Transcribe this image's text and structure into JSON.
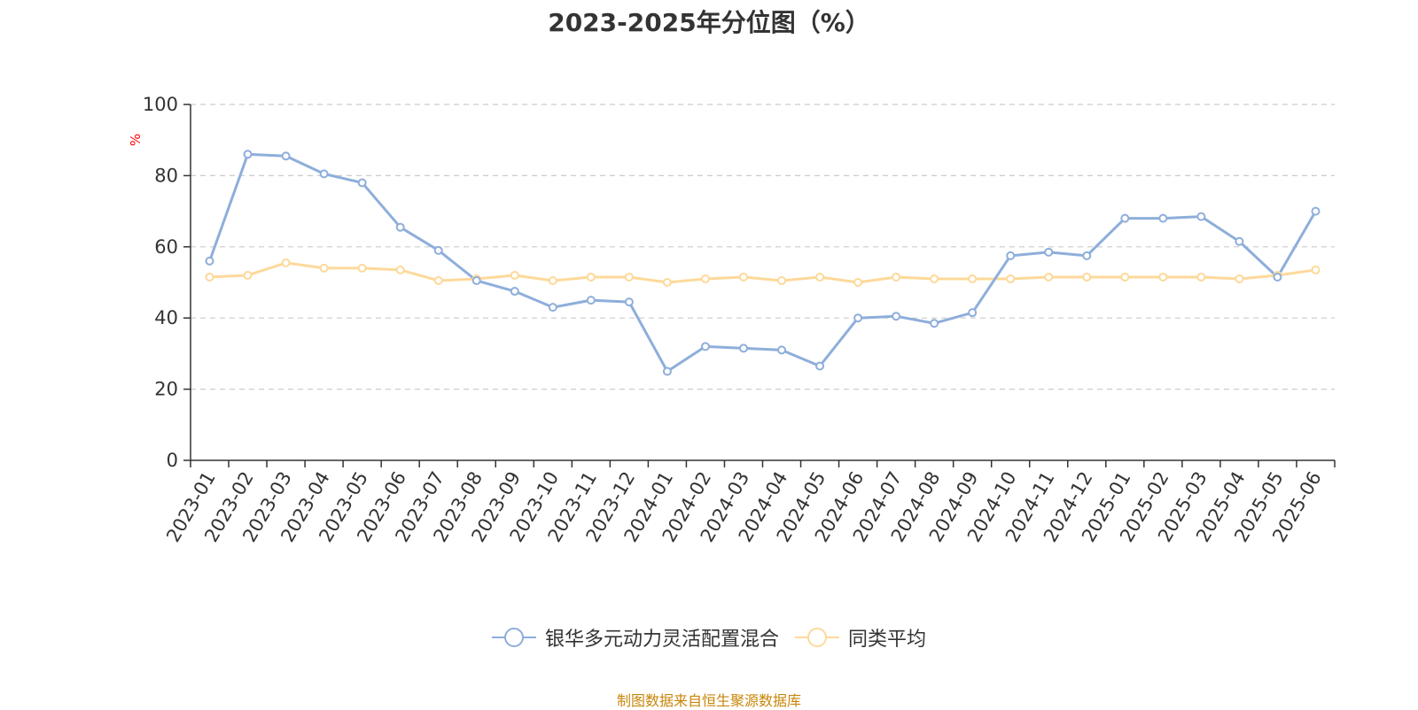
{
  "source_text": "制图数据来自恒生聚源数据库",
  "colors": {
    "series1": "#8eaedb",
    "series2": "#fdd99a",
    "grid": "#cccccc",
    "axis": "#333333",
    "unit": "#ff0000",
    "source": "#c8860a"
  },
  "chart_data": {
    "type": "line",
    "title": "2023-2025年分位图（%）",
    "ylabel": "%",
    "xlabel": "",
    "ylim": [
      0,
      100
    ],
    "yticks": [
      0,
      20,
      40,
      60,
      80,
      100
    ],
    "grid": true,
    "legend_position": "bottom",
    "categories": [
      "2023-01",
      "2023-02",
      "2023-03",
      "2023-04",
      "2023-05",
      "2023-06",
      "2023-07",
      "2023-08",
      "2023-09",
      "2023-10",
      "2023-11",
      "2023-12",
      "2024-01",
      "2024-02",
      "2024-03",
      "2024-04",
      "2024-05",
      "2024-06",
      "2024-07",
      "2024-08",
      "2024-09",
      "2024-10",
      "2024-11",
      "2024-12",
      "2025-01",
      "2025-02",
      "2025-03",
      "2025-04",
      "2025-05",
      "2025-06"
    ],
    "series": [
      {
        "name": "银华多元动力灵活配置混合",
        "values": [
          56,
          86,
          85.5,
          80.5,
          78,
          65.5,
          59,
          50.5,
          47.5,
          43,
          45,
          44.5,
          25,
          32,
          31.5,
          31,
          26.5,
          40,
          40.5,
          38.5,
          41.5,
          57.5,
          58.5,
          57.5,
          68,
          68,
          68.5,
          61.5,
          51.5,
          70
        ]
      },
      {
        "name": "同类平均",
        "values": [
          51.5,
          52,
          55.5,
          54,
          54,
          53.5,
          50.5,
          51,
          52,
          50.5,
          51.5,
          51.5,
          50,
          51,
          51.5,
          50.5,
          51.5,
          50,
          51.5,
          51,
          51,
          51,
          51.5,
          51.5,
          51.5,
          51.5,
          51.5,
          51,
          52,
          53.5
        ]
      }
    ]
  }
}
